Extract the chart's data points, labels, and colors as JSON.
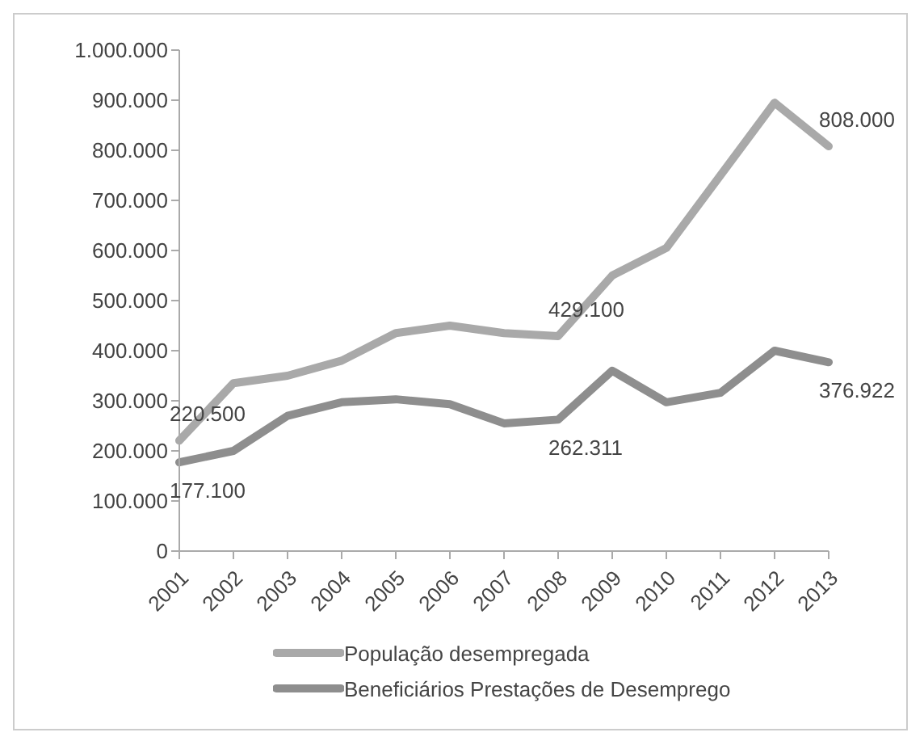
{
  "chart_data": {
    "type": "line",
    "categories": [
      "2001",
      "2002",
      "2003",
      "2004",
      "2005",
      "2006",
      "2007",
      "2008",
      "2009",
      "2010",
      "2011",
      "2012",
      "2013"
    ],
    "series": [
      {
        "name": "População desempregada",
        "color": "#a9a9a9",
        "values": [
          220500,
          335000,
          350000,
          380000,
          435000,
          450000,
          435000,
          429100,
          550000,
          605000,
          750000,
          895000,
          808000
        ],
        "value_labels": [
          "220.500",
          null,
          null,
          null,
          null,
          null,
          null,
          "429.100",
          null,
          null,
          null,
          null,
          "808.000"
        ]
      },
      {
        "name": "Beneficiários Prestações de Desemprego",
        "color": "#8e8e8e",
        "values": [
          177100,
          200000,
          270000,
          297000,
          303000,
          293000,
          255000,
          262311,
          360000,
          297000,
          316000,
          400000,
          376922
        ],
        "value_labels": [
          "177.100",
          null,
          null,
          null,
          null,
          null,
          null,
          "262.311",
          null,
          null,
          null,
          null,
          "376.922"
        ]
      }
    ],
    "ylim": [
      0,
      1000000
    ],
    "yticks": [
      0,
      {
        "value": 100000,
        "label": "100.000"
      },
      {
        "value": 200000,
        "label": "200.000"
      },
      {
        "value": 300000,
        "label": "300.000"
      },
      {
        "value": 400000,
        "label": "400.000"
      },
      {
        "value": 500000,
        "label": "500.000"
      },
      {
        "value": 600000,
        "label": "600.000"
      },
      {
        "value": 700000,
        "label": "700.000"
      },
      {
        "value": 800000,
        "label": "800.000"
      },
      {
        "value": 900000,
        "label": "900.000"
      },
      {
        "value": 1000000,
        "label": "1.000.000"
      }
    ],
    "grid": false,
    "legend": "bottom",
    "marker": "none",
    "line_style": "solid"
  }
}
